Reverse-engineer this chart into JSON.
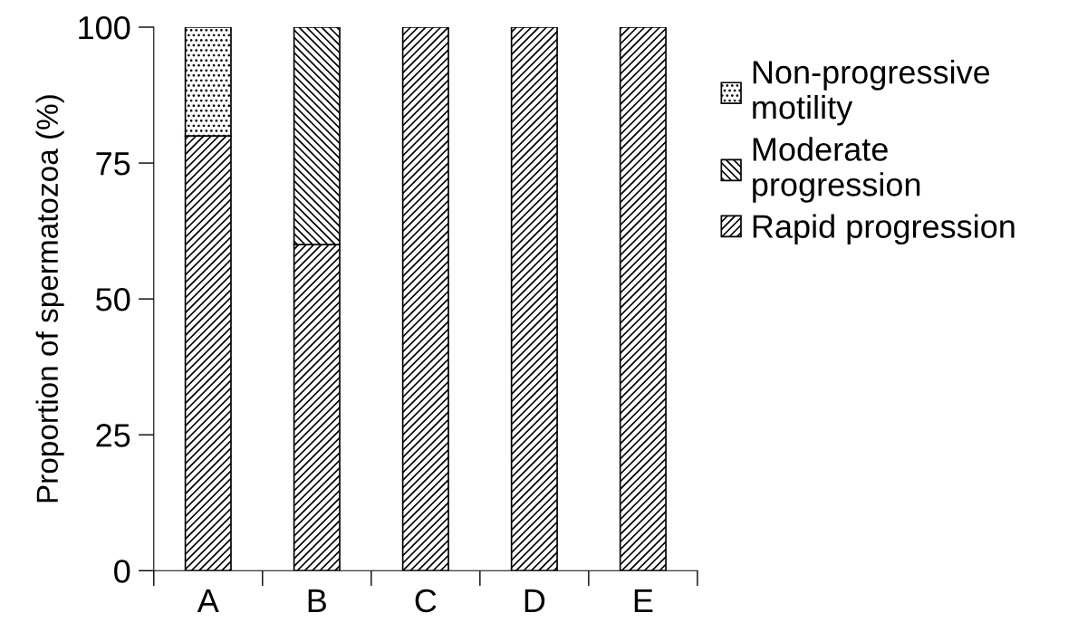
{
  "chart_data": {
    "type": "bar",
    "stacked": true,
    "ylabel": "Proportion of spermatozoa (%)",
    "categories": [
      "A",
      "B",
      "C",
      "D",
      "E"
    ],
    "series": [
      {
        "name": "Rapid progression",
        "color": "#000000",
        "values": [
          80,
          60,
          100,
          100,
          100
        ]
      },
      {
        "name": "Moderate\nprogression",
        "color": "#000000",
        "values": [
          0,
          40,
          0,
          0,
          0
        ]
      },
      {
        "name": "Non-progressive\nmotility",
        "color": "#000000",
        "values": [
          20,
          0,
          0,
          0,
          0
        ]
      }
    ],
    "ylim": [
      0,
      100
    ],
    "yticks": [
      0,
      25,
      50,
      75,
      100
    ],
    "grid": false,
    "legend": "right"
  }
}
